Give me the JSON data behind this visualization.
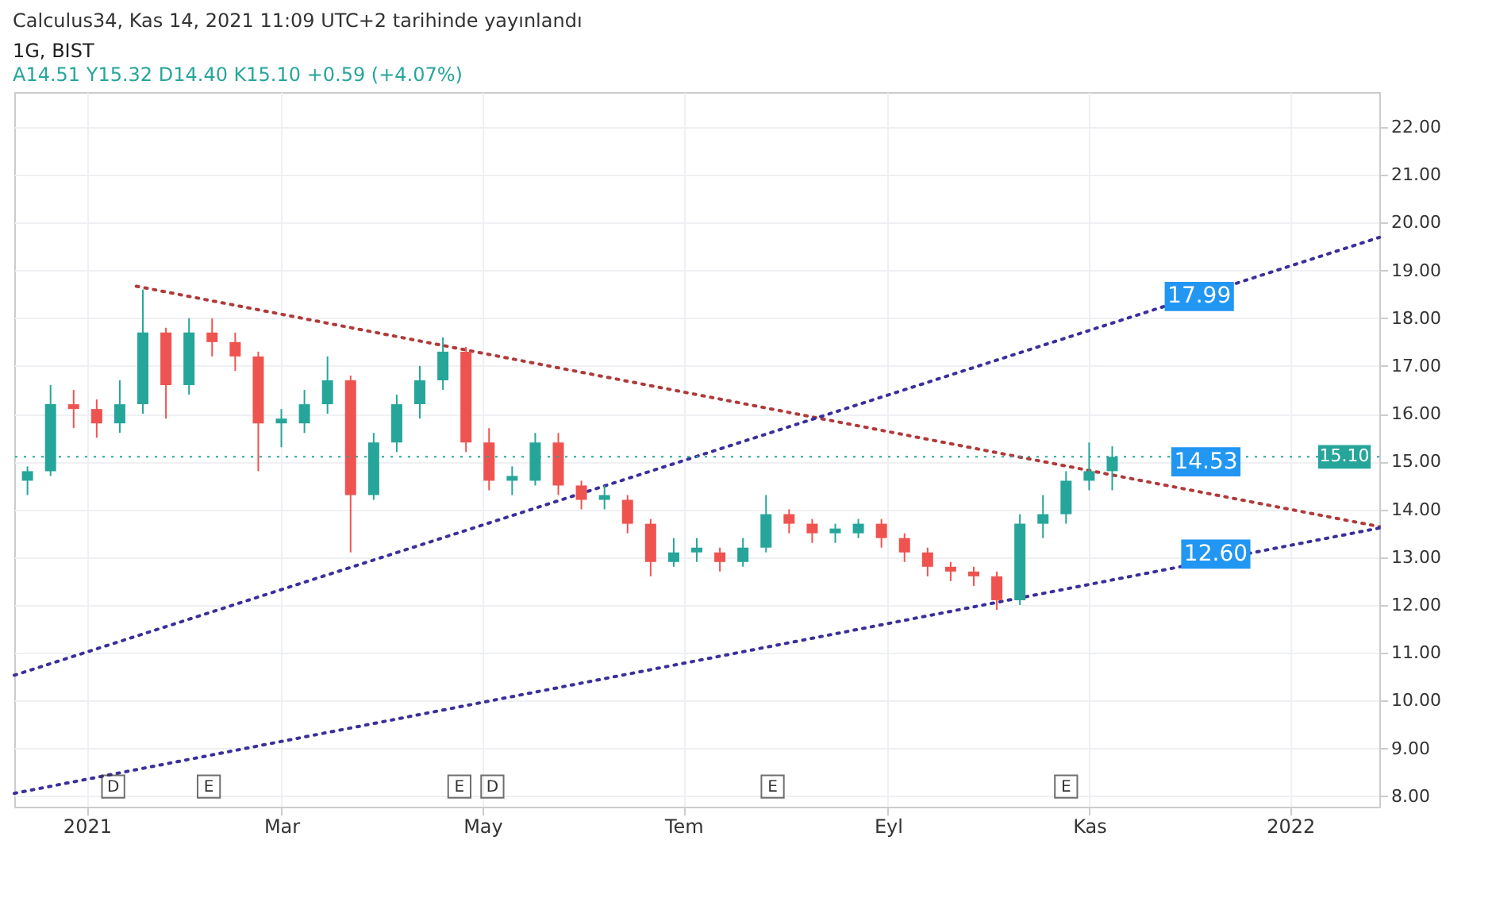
{
  "chart_data": {
    "type": "candlestick",
    "title": "1G, BIST",
    "subtitle": "A14.51  Y15.32  D14.40  K15.10  +0.59 (+4.07%)",
    "annotations": [
      "Calculus34, Kas 14, 2021 11:09 UTC+2 tarihinde yayınlandı",
      {
        "text": "17.99",
        "x": "2021-11-19",
        "y": 17.99
      },
      {
        "text": "14.53",
        "x": "2021-11-21",
        "y": 14.53
      },
      {
        "text": "12.60",
        "x": "2021-11-24",
        "y": 12.6
      },
      {
        "text": "D",
        "x": "2021-01-09",
        "y": 8.2
      },
      {
        "text": "E",
        "x": "2021-02-07",
        "y": 8.2
      },
      {
        "text": "E",
        "x": "2021-04-24",
        "y": 8.2
      },
      {
        "text": "D",
        "x": "2021-05-04",
        "y": 8.2
      },
      {
        "text": "E",
        "x": "2021-07-28",
        "y": 8.2
      },
      {
        "text": "E",
        "x": "2021-10-25",
        "y": 8.2
      }
    ],
    "x": [
      "2020-12-14",
      "2020-12-21",
      "2020-12-28",
      "2021-01-04",
      "2021-01-11",
      "2021-01-18",
      "2021-01-25",
      "2021-02-01",
      "2021-02-08",
      "2021-02-15",
      "2021-02-22",
      "2021-03-01",
      "2021-03-08",
      "2021-03-15",
      "2021-03-22",
      "2021-03-29",
      "2021-04-05",
      "2021-04-12",
      "2021-04-19",
      "2021-04-26",
      "2021-05-03",
      "2021-05-10",
      "2021-05-17",
      "2021-05-24",
      "2021-05-31",
      "2021-06-07",
      "2021-06-14",
      "2021-06-21",
      "2021-06-28",
      "2021-07-05",
      "2021-07-12",
      "2021-07-19",
      "2021-07-26",
      "2021-08-02",
      "2021-08-09",
      "2021-08-16",
      "2021-08-23",
      "2021-08-30",
      "2021-09-06",
      "2021-09-13",
      "2021-09-20",
      "2021-09-27",
      "2021-10-04",
      "2021-10-11",
      "2021-10-18",
      "2021-10-25",
      "2021-11-01",
      "2021-11-08"
    ],
    "ohlc": [
      [
        14.6,
        14.9,
        14.3,
        14.8
      ],
      [
        14.8,
        16.6,
        14.7,
        16.2
      ],
      [
        16.2,
        16.5,
        15.7,
        16.1
      ],
      [
        16.1,
        16.3,
        15.5,
        15.8
      ],
      [
        15.8,
        16.7,
        15.6,
        16.2
      ],
      [
        16.2,
        18.6,
        16.0,
        17.7
      ],
      [
        17.7,
        17.8,
        15.9,
        16.6
      ],
      [
        16.6,
        18.0,
        16.4,
        17.7
      ],
      [
        17.7,
        18.0,
        17.2,
        17.5
      ],
      [
        17.5,
        17.7,
        16.9,
        17.2
      ],
      [
        17.2,
        17.3,
        14.8,
        15.8
      ],
      [
        15.8,
        16.1,
        15.3,
        15.9
      ],
      [
        15.8,
        16.5,
        15.6,
        16.2
      ],
      [
        16.2,
        17.2,
        16.0,
        16.7
      ],
      [
        16.7,
        16.8,
        13.1,
        14.3
      ],
      [
        14.3,
        15.6,
        14.2,
        15.4
      ],
      [
        15.4,
        16.4,
        15.2,
        16.2
      ],
      [
        16.2,
        17.0,
        15.9,
        16.7
      ],
      [
        16.7,
        17.6,
        16.5,
        17.3
      ],
      [
        17.3,
        17.4,
        15.2,
        15.4
      ],
      [
        15.4,
        15.7,
        14.4,
        14.6
      ],
      [
        14.6,
        14.9,
        14.3,
        14.7
      ],
      [
        14.6,
        15.6,
        14.5,
        15.4
      ],
      [
        15.4,
        15.6,
        14.3,
        14.5
      ],
      [
        14.5,
        14.6,
        14.0,
        14.2
      ],
      [
        14.2,
        14.5,
        14.0,
        14.3
      ],
      [
        14.2,
        14.3,
        13.5,
        13.7
      ],
      [
        13.7,
        13.8,
        12.6,
        12.9
      ],
      [
        12.9,
        13.4,
        12.8,
        13.1
      ],
      [
        13.1,
        13.4,
        12.9,
        13.2
      ],
      [
        13.1,
        13.2,
        12.7,
        12.9
      ],
      [
        12.9,
        13.4,
        12.8,
        13.2
      ],
      [
        13.2,
        14.3,
        13.1,
        13.9
      ],
      [
        13.9,
        14.0,
        13.5,
        13.7
      ],
      [
        13.7,
        13.8,
        13.3,
        13.5
      ],
      [
        13.5,
        13.7,
        13.3,
        13.6
      ],
      [
        13.5,
        13.8,
        13.4,
        13.7
      ],
      [
        13.7,
        13.8,
        13.2,
        13.4
      ],
      [
        13.4,
        13.5,
        12.9,
        13.1
      ],
      [
        13.1,
        13.2,
        12.6,
        12.8
      ],
      [
        12.8,
        12.9,
        12.5,
        12.7
      ],
      [
        12.7,
        12.8,
        12.4,
        12.6
      ],
      [
        12.6,
        12.7,
        11.9,
        12.1
      ],
      [
        12.1,
        13.9,
        12.0,
        13.7
      ],
      [
        13.7,
        14.3,
        13.4,
        13.9
      ],
      [
        13.9,
        14.8,
        13.7,
        14.6
      ],
      [
        14.6,
        15.4,
        14.4,
        14.8
      ],
      [
        14.8,
        15.32,
        14.4,
        15.1
      ]
    ],
    "colors": [
      "#26a69a",
      "#26a69a",
      "#ef5350",
      "#ef5350",
      "#26a69a",
      "#26a69a",
      "#ef5350",
      "#26a69a",
      "#ef5350",
      "#ef5350",
      "#ef5350",
      "#26a69a",
      "#26a69a",
      "#26a69a",
      "#ef5350",
      "#26a69a",
      "#26a69a",
      "#26a69a",
      "#26a69a",
      "#ef5350",
      "#ef5350",
      "#26a69a",
      "#26a69a",
      "#ef5350",
      "#ef5350",
      "#26a69a",
      "#ef5350",
      "#ef5350",
      "#26a69a",
      "#26a69a",
      "#ef5350",
      "#26a69a",
      "#26a69a",
      "#ef5350",
      "#ef5350",
      "#26a69a",
      "#26a69a",
      "#ef5350",
      "#ef5350",
      "#ef5350",
      "#ef5350",
      "#ef5350",
      "#ef5350",
      "#26a69a",
      "#26a69a",
      "#26a69a",
      "#26a69a",
      "#26a69a"
    ],
    "series": [
      {
        "type": "line",
        "x": [
          "2021-01-16",
          "2022-01-28"
        ],
        "values": [
          18.67,
          13.64
        ],
        "color": "#b03a3a",
        "line_style": "dotted"
      },
      {
        "type": "line",
        "x": [
          "2020-12-10",
          "2022-01-28"
        ],
        "values": [
          10.53,
          19.69
        ],
        "color": "#3a2f9a",
        "line_style": "dotted"
      },
      {
        "type": "line",
        "x": [
          "2020-12-10",
          "2022-01-28"
        ],
        "values": [
          8.06,
          13.61
        ],
        "color": "#3a2f9a",
        "line_style": "dotted"
      }
    ],
    "ref_lines": [
      {
        "axis": "y",
        "value": 15.1,
        "label": "15.10",
        "color": "#26a69a",
        "line_style": "dotted"
      }
    ],
    "xlim": [
      "2020-12-10",
      "2022-01-28"
    ],
    "xticks": [
      {
        "value": "2021-01-01",
        "label": "2021"
      },
      {
        "value": "2021-03-01",
        "label": "Mar"
      },
      {
        "value": "2021-05-01",
        "label": "May"
      },
      {
        "value": "2021-07-01",
        "label": "Tem"
      },
      {
        "value": "2021-09-01",
        "label": "Eyl"
      },
      {
        "value": "2021-11-01",
        "label": "Kas"
      },
      {
        "value": "2022-01-01",
        "label": "2022"
      }
    ],
    "ylim": [
      7.78,
      22.73
    ],
    "yticks": [
      {
        "value": 8,
        "label": "8.00"
      },
      {
        "value": 9,
        "label": "9.00"
      },
      {
        "value": 10,
        "label": "10.00"
      },
      {
        "value": 11,
        "label": "11.00"
      },
      {
        "value": 12,
        "label": "12.00"
      },
      {
        "value": 13,
        "label": "13.00"
      },
      {
        "value": 14,
        "label": "14.00"
      },
      {
        "value": 15,
        "label": "15.00"
      },
      {
        "value": 16,
        "label": "16.00"
      },
      {
        "value": 17,
        "label": "17.00"
      },
      {
        "value": 18,
        "label": "18.00"
      },
      {
        "value": 19,
        "label": "19.00"
      },
      {
        "value": 20,
        "label": "20.00"
      },
      {
        "value": 21,
        "label": "21.00"
      },
      {
        "value": 22,
        "label": "22.00"
      }
    ],
    "grid": true
  }
}
